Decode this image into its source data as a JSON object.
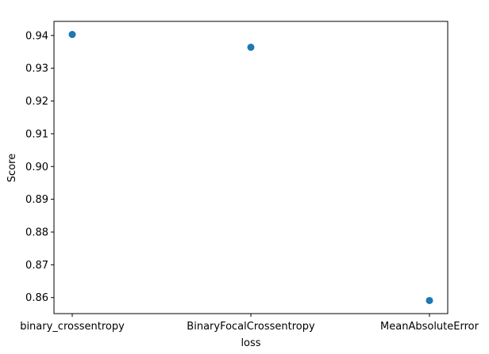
{
  "chart_data": {
    "type": "scatter",
    "title": "",
    "xlabel": "loss",
    "ylabel": "Score",
    "categories": [
      "binary_crossentropy",
      "BinaryFocalCrossentropy",
      "MeanAbsoluteError"
    ],
    "series": [
      {
        "values": [
          0.9403,
          0.9364,
          0.8591
        ]
      }
    ],
    "ylim": [
      0.8551,
      0.9443
    ],
    "yticks": [
      0.86,
      0.87,
      0.88,
      0.89,
      0.9,
      0.91,
      0.92,
      0.93,
      0.94
    ],
    "ytick_labels": [
      "0.86",
      "0.87",
      "0.88",
      "0.89",
      "0.90",
      "0.91",
      "0.92",
      "0.93",
      "0.94"
    ],
    "grid": false,
    "colors": {
      "marker": "#1f77b4",
      "axis": "#000000"
    }
  }
}
